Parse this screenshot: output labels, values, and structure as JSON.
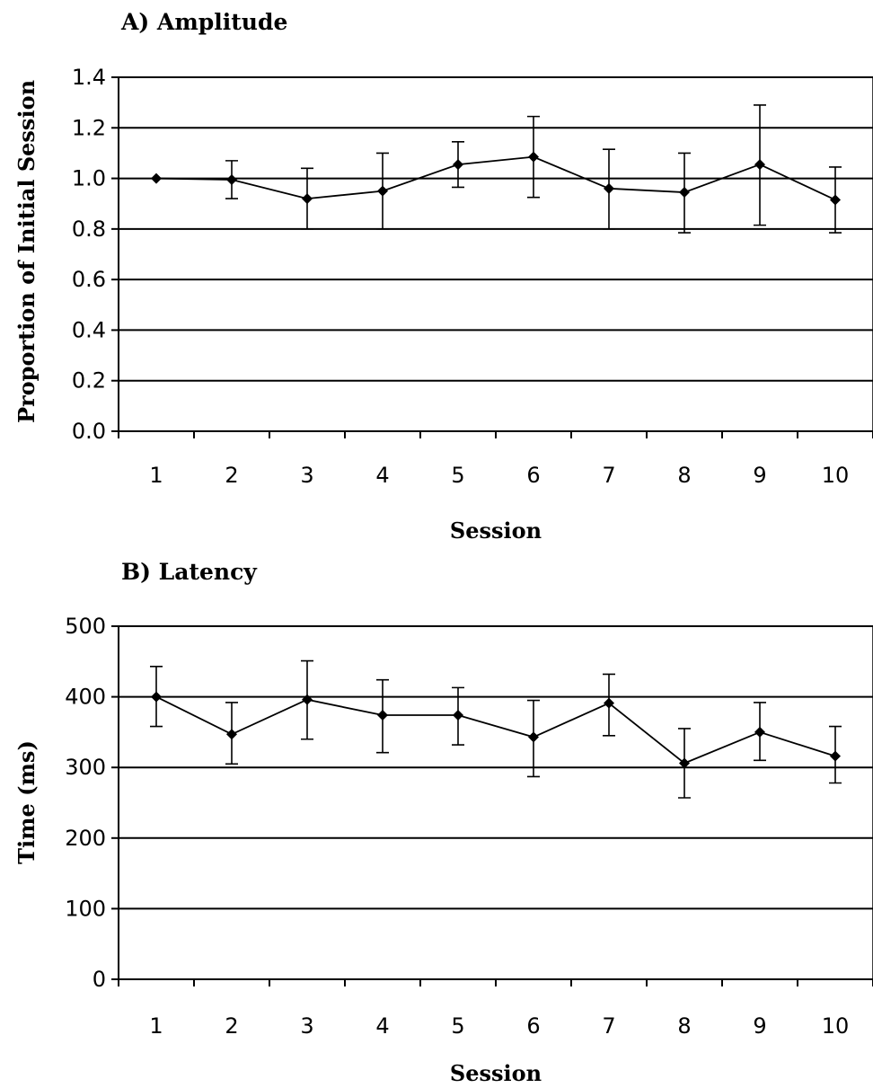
{
  "chart_data": [
    {
      "type": "line",
      "title": "A) Amplitude",
      "xlabel": "Session",
      "ylabel": "Proportion of Initial Session",
      "categories": [
        "1",
        "2",
        "3",
        "4",
        "5",
        "6",
        "7",
        "8",
        "9",
        "10"
      ],
      "yticks": [
        "0.0",
        "0.2",
        "0.4",
        "0.6",
        "0.8",
        "1.0",
        "1.2",
        "1.4"
      ],
      "ylim": [
        0,
        1.4
      ],
      "grid": true,
      "legend": "none",
      "series": [
        {
          "values": [
            1.0,
            0.995,
            0.92,
            0.95,
            1.055,
            1.085,
            0.96,
            0.945,
            1.055,
            0.915
          ],
          "error_low": [
            1.0,
            0.92,
            0.8,
            0.8,
            0.965,
            0.925,
            0.8,
            0.785,
            0.815,
            0.785
          ],
          "error_high": [
            1.0,
            1.07,
            1.04,
            1.1,
            1.145,
            1.245,
            1.115,
            1.1,
            1.29,
            1.045
          ]
        }
      ]
    },
    {
      "type": "line",
      "title": "B) Latency",
      "xlabel": "Session",
      "ylabel": "Time (ms)",
      "categories": [
        "1",
        "2",
        "3",
        "4",
        "5",
        "6",
        "7",
        "8",
        "9",
        "10"
      ],
      "yticks": [
        "0",
        "100",
        "200",
        "300",
        "400",
        "500"
      ],
      "ylim": [
        0,
        500
      ],
      "grid": true,
      "legend": "none",
      "series": [
        {
          "values": [
            400,
            347,
            396,
            374,
            374,
            343,
            391,
            306,
            350,
            316
          ],
          "error_low": [
            358,
            305,
            340,
            321,
            332,
            287,
            345,
            257,
            310,
            278
          ],
          "error_high": [
            443,
            392,
            451,
            424,
            413,
            395,
            432,
            355,
            392,
            358
          ]
        }
      ]
    }
  ]
}
